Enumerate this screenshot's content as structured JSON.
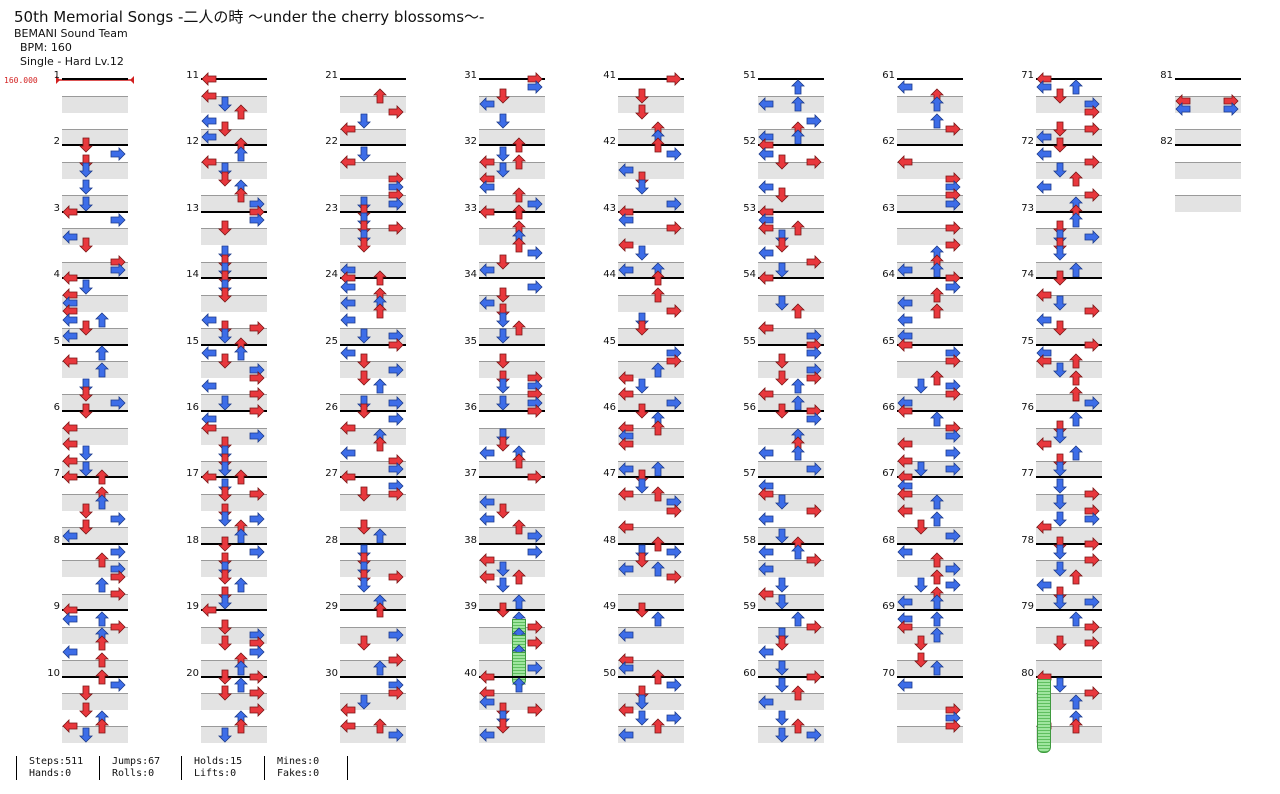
{
  "song": {
    "title": "50th Memorial Songs -二人の時 ～under the cherry blossoms～-",
    "artist": "BEMANI Sound Team",
    "bpm_text": "BPM: 160",
    "chart_text": "Single - Hard  Lv.12"
  },
  "bpm_marker": {
    "value": "160.000"
  },
  "colors": {
    "red": "#e8383d",
    "blue": "#3d6de8",
    "yellow": "#f2d93a",
    "green": "#7fd47f",
    "band": "#e3e3e3"
  },
  "measures": [
    "1",
    "2",
    "3",
    "4",
    "5",
    "6",
    "7",
    "8",
    "9",
    "10",
    "11",
    "12",
    "13",
    "14",
    "15",
    "16",
    "17",
    "18",
    "19",
    "20",
    "21",
    "22",
    "23",
    "24",
    "25",
    "26",
    "27",
    "28",
    "29",
    "30",
    "31",
    "32",
    "33",
    "34",
    "35",
    "36",
    "37",
    "38",
    "39",
    "40",
    "41",
    "42",
    "43",
    "44",
    "45",
    "46",
    "47",
    "48",
    "49",
    "50",
    "51",
    "52",
    "53",
    "54",
    "55",
    "56",
    "57",
    "58",
    "59",
    "60",
    "61",
    "62",
    "63",
    "64",
    "65",
    "66",
    "67",
    "68",
    "69",
    "70",
    "71",
    "72",
    "73",
    "74",
    "75",
    "76",
    "77",
    "78",
    "79",
    "80",
    "81",
    "82"
  ],
  "stats": [
    {
      "a": "Steps:511",
      "b": "Hands:0"
    },
    {
      "a": "Jumps:67",
      "b": "Rolls:0"
    },
    {
      "a": "Holds:15",
      "b": "Lifts:0"
    },
    {
      "a": "Mines:0",
      "b": "Fakes:0"
    }
  ]
}
